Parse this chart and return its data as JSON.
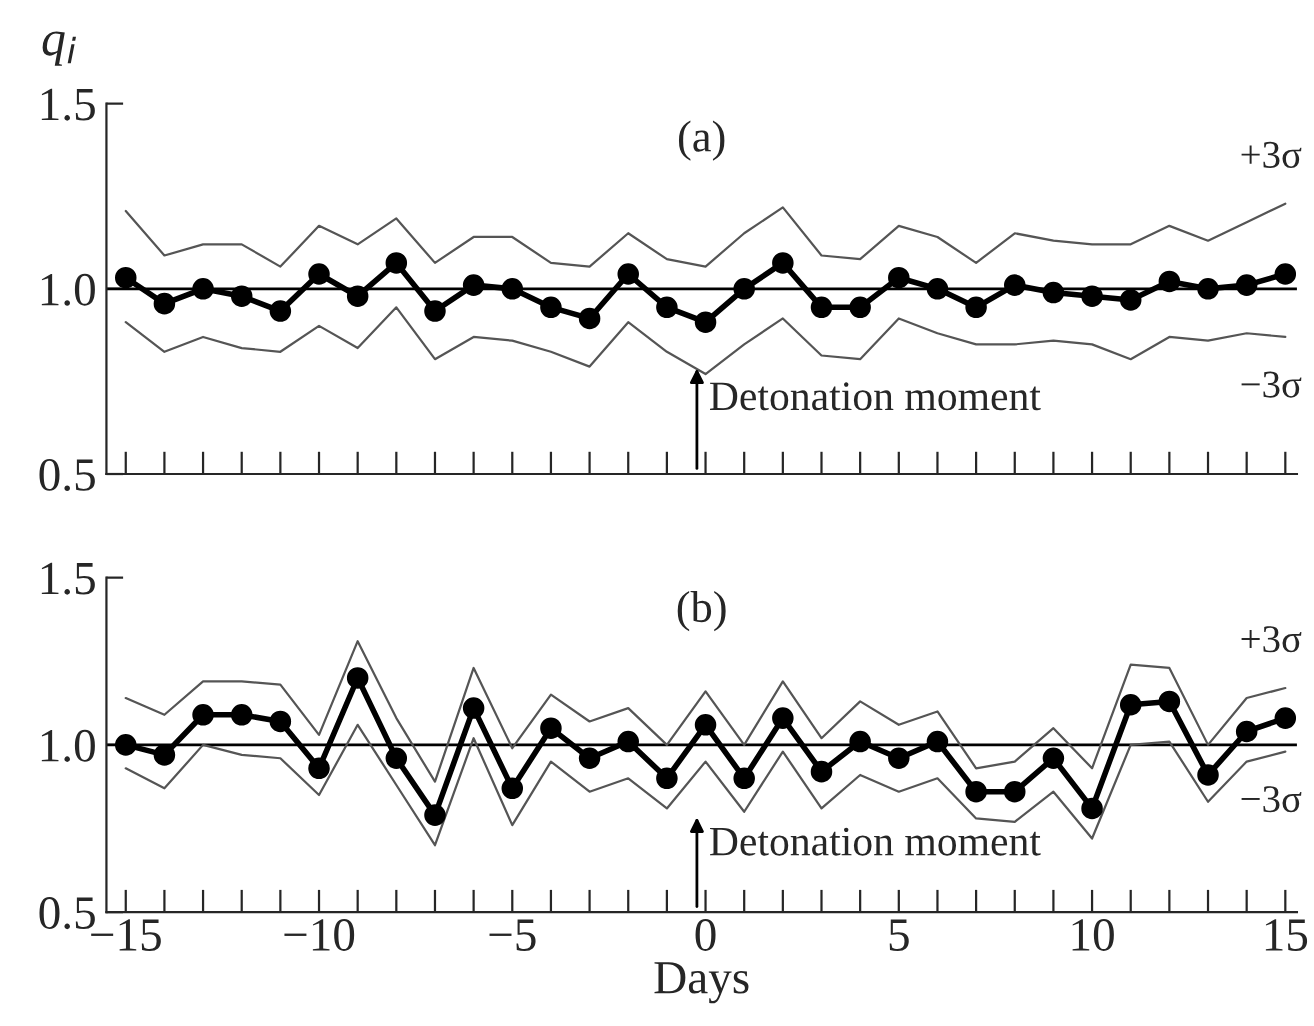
{
  "chart_data": [
    {
      "type": "line",
      "title": "(a)",
      "ylabel": "q$_{i}$",
      "xlim": [
        -15.5,
        15.3
      ],
      "ylim": [
        0.5,
        1.5
      ],
      "yticks": [
        {
          "value": 0.5,
          "label": "0.5"
        },
        {
          "value": 1.0,
          "label": "1.0"
        },
        {
          "value": 1.5,
          "label": "1.5"
        }
      ],
      "xticks": [
        {
          "value": -15,
          "label": null
        },
        {
          "value": -14,
          "label": null
        },
        {
          "value": -13,
          "label": null
        },
        {
          "value": -12,
          "label": null
        },
        {
          "value": -11,
          "label": null
        },
        {
          "value": -10,
          "label": null
        },
        {
          "value": -9,
          "label": null
        },
        {
          "value": -8,
          "label": null
        },
        {
          "value": -7,
          "label": null
        },
        {
          "value": -6,
          "label": null
        },
        {
          "value": -5,
          "label": null
        },
        {
          "value": -4,
          "label": null
        },
        {
          "value": -3,
          "label": null
        },
        {
          "value": -2,
          "label": null
        },
        {
          "value": -1,
          "label": null
        },
        {
          "value": 0,
          "label": null
        },
        {
          "value": 1,
          "label": null
        },
        {
          "value": 2,
          "label": null
        },
        {
          "value": 3,
          "label": null
        },
        {
          "value": 4,
          "label": null
        },
        {
          "value": 5,
          "label": null
        },
        {
          "value": 6,
          "label": null
        },
        {
          "value": 7,
          "label": null
        },
        {
          "value": 8,
          "label": null
        },
        {
          "value": 9,
          "label": null
        },
        {
          "value": 10,
          "label": null
        },
        {
          "value": 11,
          "label": null
        },
        {
          "value": 12,
          "label": null
        },
        {
          "value": 13,
          "label": null
        },
        {
          "value": 14,
          "label": null
        },
        {
          "value": 15,
          "label": null
        }
      ],
      "tick_labels": "y",
      "grid": false,
      "legend": false,
      "x": [
        -15,
        -14,
        -13,
        -12,
        -11,
        -10,
        -9,
        -8,
        -7,
        -6,
        -5,
        -4,
        -3,
        -2,
        -1,
        0,
        1,
        2,
        3,
        4,
        5,
        6,
        7,
        8,
        9,
        10,
        11,
        12,
        13,
        14,
        15
      ],
      "series": [
        {
          "color": "#000000",
          "marker": "circle",
          "values": [
            1.03,
            0.96,
            1.0,
            0.98,
            0.94,
            1.04,
            0.98,
            1.07,
            0.94,
            1.01,
            1.0,
            0.95,
            0.92,
            1.04,
            0.95,
            0.91,
            1.0,
            1.07,
            0.95,
            0.95,
            1.03,
            1.0,
            0.95,
            1.01,
            0.99,
            0.98,
            0.97,
            1.02,
            1.0,
            1.01,
            1.04
          ]
        },
        {
          "name": "+3σ",
          "color": "#555555",
          "marker": "none",
          "values": [
            1.21,
            1.09,
            1.12,
            1.12,
            1.06,
            1.17,
            1.12,
            1.19,
            1.07,
            1.14,
            1.14,
            1.07,
            1.06,
            1.15,
            1.08,
            1.06,
            1.15,
            1.22,
            1.09,
            1.08,
            1.17,
            1.14,
            1.07,
            1.15,
            1.13,
            1.12,
            1.12,
            1.17,
            1.13,
            1.18,
            1.23
          ]
        },
        {
          "name": "−3σ",
          "color": "#555555",
          "marker": "none",
          "values": [
            0.91,
            0.83,
            0.87,
            0.84,
            0.83,
            0.9,
            0.84,
            0.95,
            0.81,
            0.87,
            0.86,
            0.83,
            0.79,
            0.91,
            0.83,
            0.77,
            0.85,
            0.92,
            0.82,
            0.81,
            0.92,
            0.88,
            0.85,
            0.85,
            0.86,
            0.85,
            0.81,
            0.87,
            0.86,
            0.88,
            0.87
          ]
        }
      ],
      "ref_lines": [
        {
          "axis": "y",
          "value": 1.0,
          "color": "#000000"
        }
      ],
      "annotations": [
        "Detonation moment"
      ]
    },
    {
      "type": "line",
      "title": "(b)",
      "xlabel": "Days",
      "xlim": [
        -15.5,
        15.3
      ],
      "ylim": [
        0.5,
        1.5
      ],
      "yticks": [
        {
          "value": 0.5,
          "label": "0.5"
        },
        {
          "value": 1.0,
          "label": "1.0"
        },
        {
          "value": 1.5,
          "label": "1.5"
        }
      ],
      "xticks": [
        {
          "value": -15,
          "label": "−15"
        },
        {
          "value": -14,
          "label": null
        },
        {
          "value": -13,
          "label": null
        },
        {
          "value": -12,
          "label": null
        },
        {
          "value": -11,
          "label": null
        },
        {
          "value": -10,
          "label": "−10"
        },
        {
          "value": -9,
          "label": null
        },
        {
          "value": -8,
          "label": null
        },
        {
          "value": -7,
          "label": null
        },
        {
          "value": -6,
          "label": null
        },
        {
          "value": -5,
          "label": "−5"
        },
        {
          "value": -4,
          "label": null
        },
        {
          "value": -3,
          "label": null
        },
        {
          "value": -2,
          "label": null
        },
        {
          "value": -1,
          "label": null
        },
        0,
        {
          "value": 1,
          "label": null
        },
        {
          "value": 2,
          "label": null
        },
        {
          "value": 3,
          "label": null
        },
        {
          "value": 4,
          "label": null
        },
        5,
        {
          "value": 6,
          "label": null
        },
        {
          "value": 7,
          "label": null
        },
        {
          "value": 8,
          "label": null
        },
        {
          "value": 9,
          "label": null
        },
        10,
        {
          "value": 11,
          "label": null
        },
        {
          "value": 12,
          "label": null
        },
        {
          "value": 13,
          "label": null
        },
        {
          "value": 14,
          "label": null
        },
        15
      ],
      "grid": false,
      "legend": false,
      "x": [
        -15,
        -14,
        -13,
        -12,
        -11,
        -10,
        -9,
        -8,
        -7,
        -6,
        -5,
        -4,
        -3,
        -2,
        -1,
        0,
        1,
        2,
        3,
        4,
        5,
        6,
        7,
        8,
        9,
        10,
        11,
        12,
        13,
        14,
        15
      ],
      "series": [
        {
          "color": "#000000",
          "marker": "circle",
          "values": [
            1.0,
            0.97,
            1.09,
            1.09,
            1.07,
            0.93,
            1.2,
            0.96,
            0.79,
            1.11,
            0.87,
            1.05,
            0.96,
            1.01,
            0.9,
            1.06,
            0.9,
            1.08,
            0.92,
            1.01,
            0.96,
            1.01,
            0.86,
            0.86,
            0.96,
            0.81,
            1.12,
            1.13,
            0.91,
            1.04,
            1.08
          ]
        },
        {
          "name": "+3σ",
          "color": "#555555",
          "marker": "none",
          "values": [
            1.14,
            1.09,
            1.19,
            1.19,
            1.18,
            1.03,
            1.31,
            1.08,
            0.89,
            1.23,
            0.99,
            1.15,
            1.07,
            1.11,
            1.0,
            1.16,
            1.0,
            1.19,
            1.02,
            1.13,
            1.06,
            1.1,
            0.93,
            0.95,
            1.05,
            0.93,
            1.24,
            1.23,
            1.0,
            1.14,
            1.17
          ]
        },
        {
          "name": "−3σ",
          "color": "#555555",
          "marker": "none",
          "values": [
            0.93,
            0.87,
            1.0,
            0.97,
            0.96,
            0.85,
            1.06,
            0.88,
            0.7,
            1.02,
            0.76,
            0.95,
            0.86,
            0.9,
            0.81,
            0.95,
            0.8,
            0.98,
            0.81,
            0.91,
            0.86,
            0.9,
            0.78,
            0.77,
            0.86,
            0.72,
            1.0,
            1.01,
            0.83,
            0.95,
            0.98
          ]
        }
      ],
      "ref_lines": [
        {
          "axis": "y",
          "value": 1.0,
          "color": "#000000"
        }
      ],
      "annotations": [
        "Detonation moment"
      ]
    }
  ]
}
